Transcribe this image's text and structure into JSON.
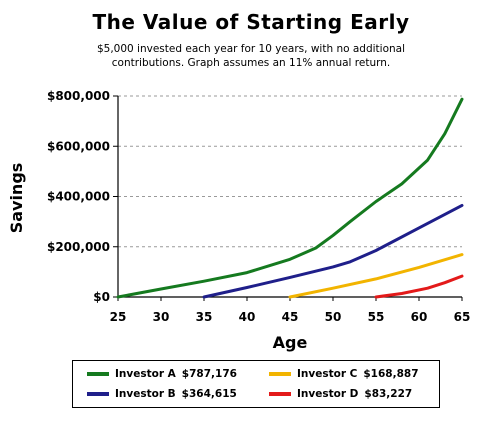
{
  "title": "The Value of Starting Early",
  "subtitle_lines": [
    "$5,000 invested each year for 10 years, with no additional",
    "contributions. Graph assumes an 11% annual return."
  ],
  "chart_data": {
    "type": "line",
    "title": "The Value of Starting Early",
    "xlabel": "Age",
    "ylabel": "Savings",
    "xlim": [
      25,
      65
    ],
    "ylim": [
      0,
      800000
    ],
    "x_ticks": [
      25,
      30,
      35,
      40,
      45,
      50,
      55,
      60,
      65
    ],
    "y_ticks": [
      0,
      200000,
      400000,
      600000,
      800000
    ],
    "y_tick_labels": [
      "$0",
      "$200,000",
      "$400,000",
      "$600,000",
      "$800,000"
    ],
    "grid": "horizontal-dashed",
    "legend_position": "bottom",
    "series": [
      {
        "name": "Investor A",
        "final_label": "$787,176",
        "color": "#157a1f",
        "x": [
          25,
          30,
          35,
          40,
          45,
          48,
          50,
          52,
          55,
          58,
          61,
          63,
          65
        ],
        "y": [
          0,
          32000,
          63000,
          97000,
          150000,
          195000,
          245000,
          300000,
          380000,
          450000,
          545000,
          650000,
          787176
        ]
      },
      {
        "name": "Investor B",
        "final_label": "$364,615",
        "color": "#1f1f8a",
        "x": [
          35,
          40,
          45,
          50,
          52,
          55,
          60,
          65
        ],
        "y": [
          0,
          38000,
          78000,
          120000,
          140000,
          185000,
          275000,
          364615
        ]
      },
      {
        "name": "Investor C",
        "final_label": "$168,887",
        "color": "#f2b400",
        "x": [
          45,
          50,
          55,
          60,
          65
        ],
        "y": [
          0,
          35000,
          72000,
          118000,
          168887
        ]
      },
      {
        "name": "Investor D",
        "final_label": "$83,227",
        "color": "#e31a1a",
        "x": [
          55,
          58,
          61,
          63,
          65
        ],
        "y": [
          0,
          14000,
          35000,
          57000,
          83227
        ]
      }
    ]
  }
}
